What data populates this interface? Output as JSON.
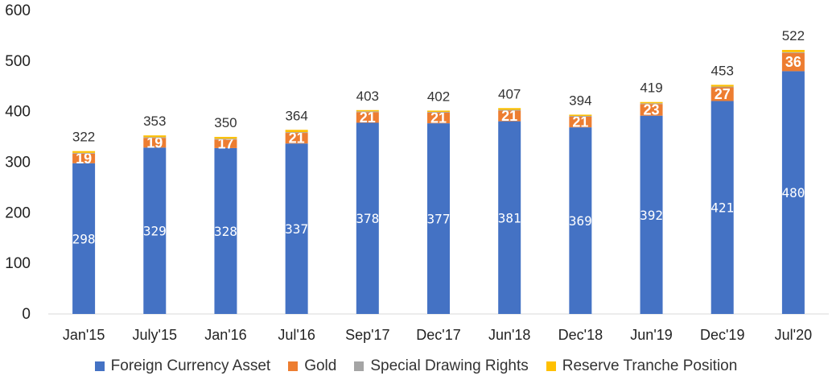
{
  "chart_data": {
    "type": "bar",
    "stacked": true,
    "categories": [
      "Jan'15",
      "July'15",
      "Jan'16",
      "Jul'16",
      "Sep'17",
      "Dec'17",
      "Jun'18",
      "Dec'18",
      "Jun'19",
      "Dec'19",
      "Jul'20"
    ],
    "series": [
      {
        "name": "Foreign Currency Asset",
        "color": "#4472C4",
        "values": [
          298,
          329,
          328,
          337,
          378,
          377,
          381,
          369,
          392,
          421,
          480
        ]
      },
      {
        "name": "Gold",
        "color": "#ED7D31",
        "values": [
          19,
          19,
          17,
          21,
          21,
          21,
          21,
          21,
          23,
          27,
          36
        ]
      },
      {
        "name": "Special Drawing Rights",
        "color": "#A5A5A5",
        "values": [
          1.5,
          1.5,
          1.5,
          1.5,
          1.5,
          1.5,
          1.5,
          1.5,
          1.5,
          1.5,
          1.5
        ]
      },
      {
        "name": "Reserve Tranche Position",
        "color": "#FFC000",
        "values": [
          3.5,
          3.5,
          3.5,
          4.5,
          2.5,
          2.5,
          3.5,
          2.5,
          2.5,
          3.5,
          4.5
        ]
      }
    ],
    "totals": [
      322,
      353,
      350,
      364,
      403,
      402,
      407,
      394,
      419,
      453,
      522
    ],
    "ylim": [
      0,
      600
    ],
    "yticks": [
      0,
      100,
      200,
      300,
      400,
      500,
      600
    ],
    "title": "",
    "xlabel": "",
    "ylabel": "",
    "legend_position": "bottom",
    "grid": false
  }
}
